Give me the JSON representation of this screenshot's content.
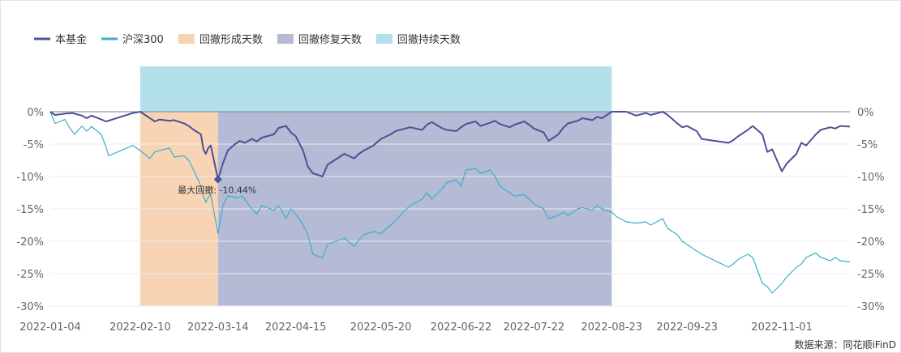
{
  "chart_data": {
    "type": "line",
    "x_ticks": [
      "2022-01-04",
      "2022-02-10",
      "2022-03-14",
      "2022-04-15",
      "2022-05-20",
      "2022-06-22",
      "2022-07-22",
      "2022-08-23",
      "2022-09-23",
      "2022-11-01"
    ],
    "x_range": [
      "2022-01-04",
      "2022-11-29"
    ],
    "ylim": [
      -30,
      0
    ],
    "y_ticks": [
      0,
      -5,
      -10,
      -15,
      -20,
      -25,
      -30
    ],
    "y_tick_labels": [
      "0%",
      "-5%",
      "-10%",
      "-15%",
      "-20%",
      "-25%",
      "-30%"
    ],
    "grid": "horizontal",
    "legend_position": "top-left",
    "series": [
      {
        "name": "本基金",
        "color": "#4b5296",
        "points": [
          [
            "2022-01-04",
            0
          ],
          [
            "2022-01-06",
            -0.5
          ],
          [
            "2022-01-10",
            -0.3
          ],
          [
            "2022-01-13",
            -0.2
          ],
          [
            "2022-01-17",
            -0.6
          ],
          [
            "2022-01-19",
            -1.0
          ],
          [
            "2022-01-21",
            -0.6
          ],
          [
            "2022-01-25",
            -1.2
          ],
          [
            "2022-01-27",
            -1.5
          ],
          [
            "2022-02-07",
            -0.2
          ],
          [
            "2022-02-10",
            0
          ],
          [
            "2022-02-14",
            -1.0
          ],
          [
            "2022-02-16",
            -1.5
          ],
          [
            "2022-02-18",
            -1.2
          ],
          [
            "2022-02-22",
            -1.4
          ],
          [
            "2022-02-24",
            -1.3
          ],
          [
            "2022-02-28",
            -1.8
          ],
          [
            "2022-03-02",
            -2.2
          ],
          [
            "2022-03-04",
            -2.8
          ],
          [
            "2022-03-07",
            -3.5
          ],
          [
            "2022-03-08",
            -5.8
          ],
          [
            "2022-03-09",
            -6.5
          ],
          [
            "2022-03-10",
            -5.6
          ],
          [
            "2022-03-11",
            -5.2
          ],
          [
            "2022-03-14",
            -10.44
          ],
          [
            "2022-03-16",
            -8.0
          ],
          [
            "2022-03-18",
            -6.0
          ],
          [
            "2022-03-21",
            -5.0
          ],
          [
            "2022-03-23",
            -4.5
          ],
          [
            "2022-03-25",
            -4.8
          ],
          [
            "2022-03-28",
            -4.2
          ],
          [
            "2022-03-30",
            -4.6
          ],
          [
            "2022-04-01",
            -4.0
          ],
          [
            "2022-04-06",
            -3.5
          ],
          [
            "2022-04-08",
            -2.5
          ],
          [
            "2022-04-11",
            -2.2
          ],
          [
            "2022-04-13",
            -3.2
          ],
          [
            "2022-04-15",
            -3.8
          ],
          [
            "2022-04-18",
            -6.0
          ],
          [
            "2022-04-20",
            -8.5
          ],
          [
            "2022-04-22",
            -9.5
          ],
          [
            "2022-04-26",
            -10.0
          ],
          [
            "2022-04-28",
            -8.2
          ],
          [
            "2022-05-05",
            -6.5
          ],
          [
            "2022-05-09",
            -7.2
          ],
          [
            "2022-05-11",
            -6.5
          ],
          [
            "2022-05-13",
            -6.0
          ],
          [
            "2022-05-17",
            -5.2
          ],
          [
            "2022-05-20",
            -4.2
          ],
          [
            "2022-05-24",
            -3.5
          ],
          [
            "2022-05-26",
            -3.0
          ],
          [
            "2022-05-30",
            -2.6
          ],
          [
            "2022-06-01",
            -2.4
          ],
          [
            "2022-06-06",
            -2.8
          ],
          [
            "2022-06-08",
            -2.0
          ],
          [
            "2022-06-10",
            -1.6
          ],
          [
            "2022-06-14",
            -2.5
          ],
          [
            "2022-06-16",
            -2.8
          ],
          [
            "2022-06-20",
            -3.0
          ],
          [
            "2022-06-22",
            -2.4
          ],
          [
            "2022-06-24",
            -1.9
          ],
          [
            "2022-06-28",
            -1.5
          ],
          [
            "2022-06-30",
            -2.2
          ],
          [
            "2022-07-04",
            -1.7
          ],
          [
            "2022-07-06",
            -1.4
          ],
          [
            "2022-07-08",
            -1.9
          ],
          [
            "2022-07-12",
            -2.4
          ],
          [
            "2022-07-14",
            -2.0
          ],
          [
            "2022-07-18",
            -1.5
          ],
          [
            "2022-07-20",
            -2.0
          ],
          [
            "2022-07-22",
            -2.6
          ],
          [
            "2022-07-26",
            -3.2
          ],
          [
            "2022-07-28",
            -4.5
          ],
          [
            "2022-08-01",
            -3.5
          ],
          [
            "2022-08-03",
            -2.5
          ],
          [
            "2022-08-05",
            -1.8
          ],
          [
            "2022-08-09",
            -1.4
          ],
          [
            "2022-08-11",
            -1.0
          ],
          [
            "2022-08-15",
            -1.3
          ],
          [
            "2022-08-17",
            -0.8
          ],
          [
            "2022-08-19",
            -1.0
          ],
          [
            "2022-08-23",
            0
          ],
          [
            "2022-08-25",
            0
          ],
          [
            "2022-08-29",
            0
          ],
          [
            "2022-08-31",
            -0.3
          ],
          [
            "2022-09-02",
            -0.6
          ],
          [
            "2022-09-06",
            -0.2
          ],
          [
            "2022-09-08",
            -0.5
          ],
          [
            "2022-09-13",
            0
          ],
          [
            "2022-09-15",
            -0.5
          ],
          [
            "2022-09-19",
            -1.8
          ],
          [
            "2022-09-21",
            -2.4
          ],
          [
            "2022-09-23",
            -2.2
          ],
          [
            "2022-09-27",
            -3.0
          ],
          [
            "2022-09-29",
            -4.2
          ],
          [
            "2022-10-10",
            -4.8
          ],
          [
            "2022-10-12",
            -4.4
          ],
          [
            "2022-10-14",
            -3.8
          ],
          [
            "2022-10-18",
            -2.8
          ],
          [
            "2022-10-20",
            -2.2
          ],
          [
            "2022-10-24",
            -3.5
          ],
          [
            "2022-10-26",
            -6.2
          ],
          [
            "2022-10-28",
            -5.8
          ],
          [
            "2022-11-01",
            -9.2
          ],
          [
            "2022-11-03",
            -8.0
          ],
          [
            "2022-11-07",
            -6.5
          ],
          [
            "2022-11-09",
            -4.8
          ],
          [
            "2022-11-11",
            -5.2
          ],
          [
            "2022-11-15",
            -3.5
          ],
          [
            "2022-11-17",
            -2.8
          ],
          [
            "2022-11-21",
            -2.4
          ],
          [
            "2022-11-23",
            -2.6
          ],
          [
            "2022-11-25",
            -2.2
          ],
          [
            "2022-11-29",
            -2.3
          ]
        ]
      },
      {
        "name": "沪深300",
        "color": "#3ab0c8",
        "points": [
          [
            "2022-01-04",
            0
          ],
          [
            "2022-01-06",
            -1.8
          ],
          [
            "2022-01-10",
            -1.2
          ],
          [
            "2022-01-12",
            -2.5
          ],
          [
            "2022-01-14",
            -3.5
          ],
          [
            "2022-01-17",
            -2.2
          ],
          [
            "2022-01-19",
            -3.0
          ],
          [
            "2022-01-21",
            -2.3
          ],
          [
            "2022-01-25",
            -3.5
          ],
          [
            "2022-01-27",
            -5.5
          ],
          [
            "2022-01-28",
            -6.8
          ],
          [
            "2022-02-07",
            -5.2
          ],
          [
            "2022-02-10",
            -6.0
          ],
          [
            "2022-02-14",
            -7.2
          ],
          [
            "2022-02-16",
            -6.2
          ],
          [
            "2022-02-18",
            -6.0
          ],
          [
            "2022-02-22",
            -5.6
          ],
          [
            "2022-02-24",
            -7.0
          ],
          [
            "2022-02-28",
            -6.8
          ],
          [
            "2022-03-02",
            -7.5
          ],
          [
            "2022-03-04",
            -9.0
          ],
          [
            "2022-03-07",
            -11.5
          ],
          [
            "2022-03-08",
            -13.0
          ],
          [
            "2022-03-09",
            -14.0
          ],
          [
            "2022-03-10",
            -13.2
          ],
          [
            "2022-03-11",
            -12.8
          ],
          [
            "2022-03-14",
            -18.8
          ],
          [
            "2022-03-16",
            -14.5
          ],
          [
            "2022-03-18",
            -13.0
          ],
          [
            "2022-03-22",
            -13.3
          ],
          [
            "2022-03-24",
            -13.0
          ],
          [
            "2022-03-28",
            -15.0
          ],
          [
            "2022-03-30",
            -15.8
          ],
          [
            "2022-04-01",
            -14.5
          ],
          [
            "2022-04-06",
            -15.2
          ],
          [
            "2022-04-08",
            -14.5
          ],
          [
            "2022-04-11",
            -16.5
          ],
          [
            "2022-04-13",
            -15.0
          ],
          [
            "2022-04-15",
            -15.8
          ],
          [
            "2022-04-18",
            -17.5
          ],
          [
            "2022-04-20",
            -19.0
          ],
          [
            "2022-04-22",
            -22.0
          ],
          [
            "2022-04-26",
            -22.6
          ],
          [
            "2022-04-28",
            -20.5
          ],
          [
            "2022-05-05",
            -19.5
          ],
          [
            "2022-05-09",
            -20.8
          ],
          [
            "2022-05-11",
            -19.8
          ],
          [
            "2022-05-13",
            -19.0
          ],
          [
            "2022-05-17",
            -18.5
          ],
          [
            "2022-05-20",
            -18.8
          ],
          [
            "2022-05-24",
            -17.5
          ],
          [
            "2022-05-26",
            -16.8
          ],
          [
            "2022-05-30",
            -15.2
          ],
          [
            "2022-06-01",
            -14.5
          ],
          [
            "2022-06-06",
            -13.5
          ],
          [
            "2022-06-08",
            -12.5
          ],
          [
            "2022-06-10",
            -13.5
          ],
          [
            "2022-06-14",
            -12.0
          ],
          [
            "2022-06-16",
            -11.0
          ],
          [
            "2022-06-20",
            -10.5
          ],
          [
            "2022-06-22",
            -11.5
          ],
          [
            "2022-06-24",
            -9.0
          ],
          [
            "2022-06-28",
            -8.8
          ],
          [
            "2022-06-30",
            -9.5
          ],
          [
            "2022-07-04",
            -9.0
          ],
          [
            "2022-07-06",
            -10.0
          ],
          [
            "2022-07-08",
            -11.5
          ],
          [
            "2022-07-12",
            -12.5
          ],
          [
            "2022-07-14",
            -13.0
          ],
          [
            "2022-07-18",
            -12.8
          ],
          [
            "2022-07-20",
            -13.5
          ],
          [
            "2022-07-22",
            -14.2
          ],
          [
            "2022-07-26",
            -15.0
          ],
          [
            "2022-07-28",
            -16.5
          ],
          [
            "2022-08-01",
            -16.0
          ],
          [
            "2022-08-03",
            -15.5
          ],
          [
            "2022-08-05",
            -16.0
          ],
          [
            "2022-08-09",
            -15.0
          ],
          [
            "2022-08-11",
            -14.8
          ],
          [
            "2022-08-15",
            -15.2
          ],
          [
            "2022-08-17",
            -14.5
          ],
          [
            "2022-08-19",
            -15.0
          ],
          [
            "2022-08-23",
            -15.5
          ],
          [
            "2022-08-25",
            -16.2
          ],
          [
            "2022-08-29",
            -17.0
          ],
          [
            "2022-09-02",
            -17.2
          ],
          [
            "2022-09-06",
            -17.0
          ],
          [
            "2022-09-08",
            -17.5
          ],
          [
            "2022-09-13",
            -16.5
          ],
          [
            "2022-09-15",
            -18.0
          ],
          [
            "2022-09-19",
            -19.0
          ],
          [
            "2022-09-21",
            -20.0
          ],
          [
            "2022-09-23",
            -20.5
          ],
          [
            "2022-09-27",
            -21.5
          ],
          [
            "2022-09-29",
            -22.0
          ],
          [
            "2022-10-10",
            -24.0
          ],
          [
            "2022-10-12",
            -23.5
          ],
          [
            "2022-10-14",
            -22.8
          ],
          [
            "2022-10-18",
            -22.0
          ],
          [
            "2022-10-20",
            -22.5
          ],
          [
            "2022-10-24",
            -26.5
          ],
          [
            "2022-10-26",
            -27.0
          ],
          [
            "2022-10-28",
            -28.0
          ],
          [
            "2022-11-01",
            -26.5
          ],
          [
            "2022-11-03",
            -25.5
          ],
          [
            "2022-11-07",
            -24.0
          ],
          [
            "2022-11-09",
            -23.5
          ],
          [
            "2022-11-11",
            -22.5
          ],
          [
            "2022-11-15",
            -21.8
          ],
          [
            "2022-11-17",
            -22.5
          ],
          [
            "2022-11-21",
            -23.0
          ],
          [
            "2022-11-23",
            -22.5
          ],
          [
            "2022-11-25",
            -23.0
          ],
          [
            "2022-11-29",
            -23.2
          ]
        ]
      }
    ],
    "regions": [
      {
        "name": "回撤形成天数",
        "color": "#f9d4b4",
        "from": "2022-02-10",
        "to": "2022-03-14",
        "ymin": -30,
        "ymax": 0
      },
      {
        "name": "回撤修复天数",
        "color": "#b5bad5",
        "from": "2022-03-14",
        "to": "2022-08-23",
        "ymin": -30,
        "ymax": 0
      },
      {
        "name": "回撤持续天数",
        "color": "#b1dfea",
        "from": "2022-02-10",
        "to": "2022-08-23",
        "ymin": 0,
        "ymax": 7
      }
    ],
    "annotations": [
      {
        "text": "最大回撤: -10.44%",
        "x": "2022-03-14",
        "y": -10.44
      }
    ]
  },
  "source_text": "数据来源：同花顺iFinD"
}
